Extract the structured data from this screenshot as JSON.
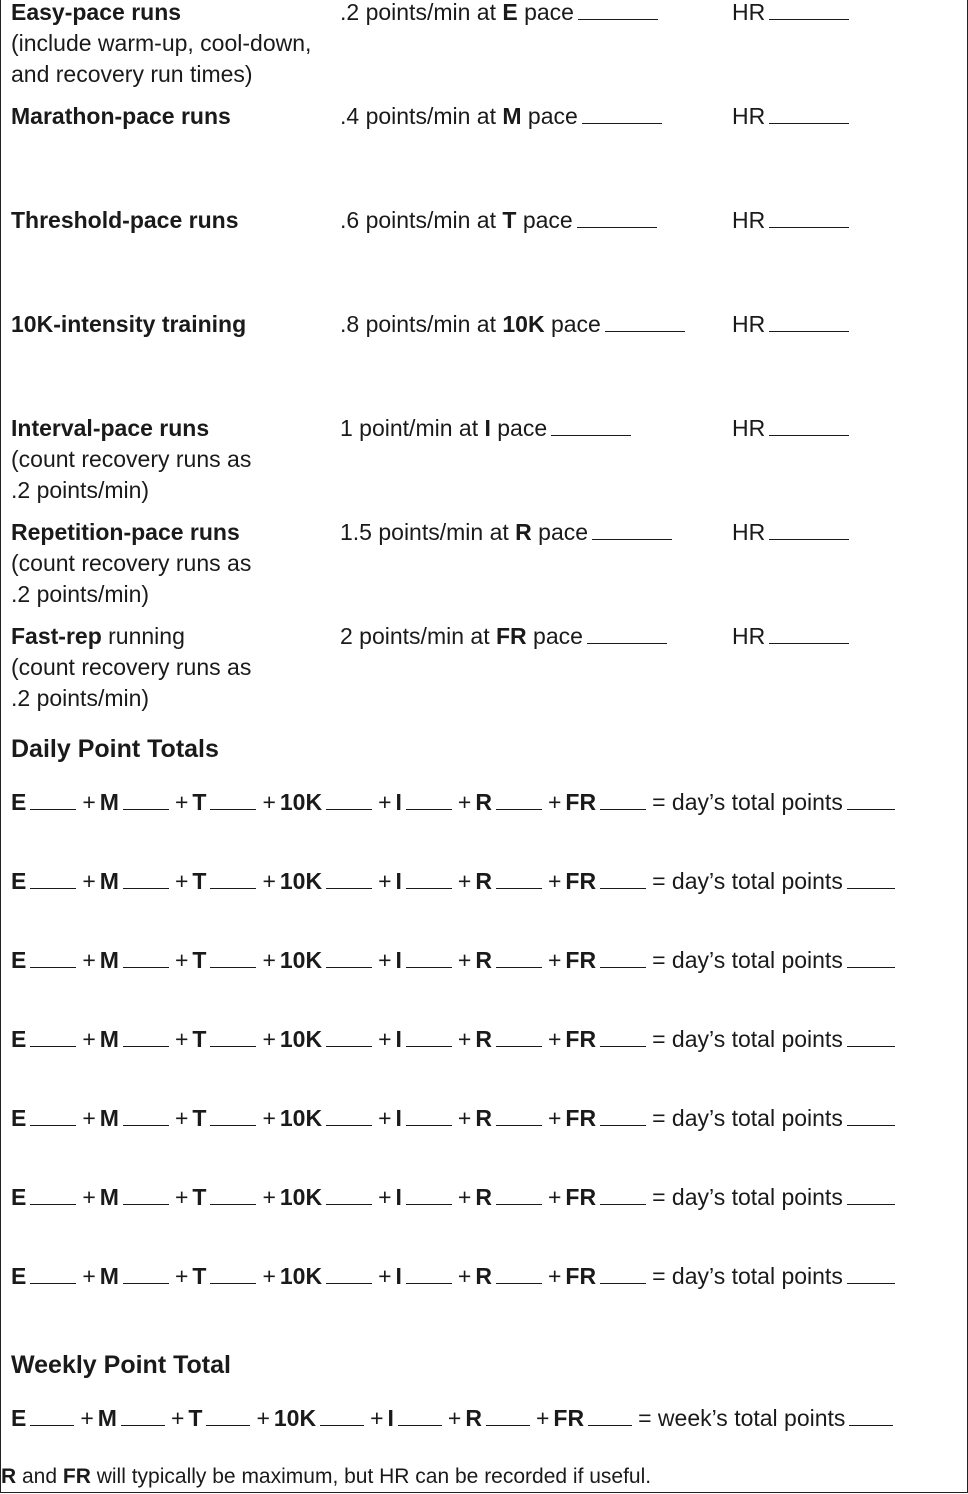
{
  "training_types": [
    {
      "name": "Easy-pace runs",
      "name_suffix": "",
      "notes": [
        "(include warm-up, cool-down,",
        "and recovery run times)"
      ],
      "rate_prefix": ".2 points/min at",
      "pace_code": "E",
      "pace_suffix": "pace",
      "hr_label": "HR"
    },
    {
      "name": "Marathon-pace runs",
      "name_suffix": "",
      "notes": [],
      "rate_prefix": ".4 points/min at",
      "pace_code": "M",
      "pace_suffix": "pace",
      "hr_label": "HR"
    },
    {
      "name": "Threshold-pace runs",
      "name_suffix": "",
      "notes": [],
      "rate_prefix": ".6 points/min at",
      "pace_code": "T",
      "pace_suffix": "pace",
      "hr_label": "HR"
    },
    {
      "name": "10K-intensity training",
      "name_suffix": "",
      "notes": [],
      "rate_prefix": ".8 points/min at",
      "pace_code": "10K",
      "pace_suffix": "pace",
      "hr_label": "HR"
    },
    {
      "name": "Interval-pace runs",
      "name_suffix": "",
      "notes": [
        "(count recovery runs as",
        ".2 points/min)"
      ],
      "rate_prefix": "1 point/min at",
      "pace_code": "I",
      "pace_suffix": "pace",
      "hr_label": "HR"
    },
    {
      "name": "Repetition-pace runs",
      "name_suffix": "",
      "notes": [
        "(count recovery runs as",
        ".2 points/min)"
      ],
      "rate_prefix": "1.5 points/min at",
      "pace_code": "R",
      "pace_suffix": "pace",
      "hr_label": "HR"
    },
    {
      "name": "Fast-rep",
      "name_suffix": " running",
      "notes": [
        "(count recovery runs as",
        ".2 points/min)"
      ],
      "rate_prefix": "2 points/min at",
      "pace_code": "FR",
      "pace_suffix": "pace",
      "hr_label": "HR"
    }
  ],
  "daily": {
    "heading": "Daily Point Totals",
    "codes": [
      "E",
      "M",
      "T",
      "10K",
      "I",
      "R",
      "FR"
    ],
    "plus": "+",
    "equals_label": "= day’s total points",
    "row_count": 7
  },
  "weekly": {
    "heading": "Weekly Point Total",
    "codes": [
      "E",
      "M",
      "T",
      "10K",
      "I",
      "R",
      "FR"
    ],
    "plus": "+",
    "equals_label": "= week’s total points"
  },
  "footnote": {
    "code1": "R",
    "text1": " and ",
    "code2": "FR",
    "text2": " will typically be maximum, but HR can be recorded if useful."
  }
}
